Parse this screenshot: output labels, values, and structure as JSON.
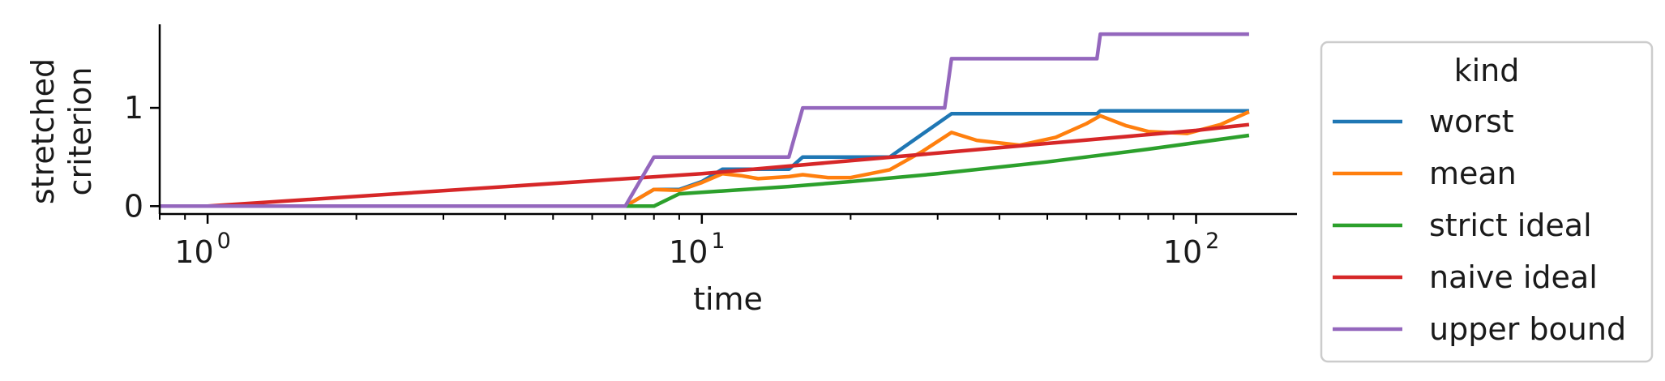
{
  "chart_data": {
    "type": "line",
    "title": "",
    "xlabel": "time",
    "ylabel": "stretched\ncriterion",
    "xscale": "log",
    "xlim": [
      0.8,
      160
    ],
    "ylim": [
      -0.08,
      1.85
    ],
    "x_ticks": [
      {
        "value": 1,
        "base": "10",
        "exp": "0"
      },
      {
        "value": 10,
        "base": "10",
        "exp": "1"
      },
      {
        "value": 100,
        "base": "10",
        "exp": "2"
      }
    ],
    "y_ticks": [
      {
        "value": 0,
        "label": "0"
      },
      {
        "value": 1,
        "label": "1"
      }
    ],
    "grid": false,
    "legend": {
      "title": "kind",
      "position": "outside-right"
    },
    "series": [
      {
        "name": "worst",
        "color": "#1f77b4",
        "x": [
          0.8,
          7,
          8,
          9,
          10,
          11,
          15,
          16,
          20,
          24,
          32,
          40,
          63,
          64,
          96,
          128
        ],
        "y": [
          0,
          0,
          0.17,
          0.17,
          0.25,
          0.375,
          0.375,
          0.5,
          0.5,
          0.5,
          0.94,
          0.94,
          0.94,
          0.97,
          0.97,
          0.97
        ]
      },
      {
        "name": "mean",
        "color": "#ff7f0e",
        "x": [
          0.8,
          7,
          8,
          9,
          10,
          11,
          12,
          13,
          15,
          16,
          18,
          20,
          24,
          28,
          32,
          36,
          44,
          52,
          60,
          64,
          72,
          80,
          96,
          112,
          128
        ],
        "y": [
          0,
          0,
          0.17,
          0.16,
          0.24,
          0.33,
          0.31,
          0.28,
          0.3,
          0.32,
          0.29,
          0.29,
          0.37,
          0.56,
          0.75,
          0.67,
          0.62,
          0.7,
          0.84,
          0.92,
          0.82,
          0.76,
          0.74,
          0.83,
          0.96
        ]
      },
      {
        "name": "strict ideal",
        "color": "#2ca02c",
        "x": [
          0.8,
          7,
          8,
          9,
          10,
          15,
          20,
          30,
          50,
          80,
          128
        ],
        "y": [
          0,
          0,
          0,
          0.125,
          0.14,
          0.2,
          0.25,
          0.33,
          0.45,
          0.58,
          0.72
        ]
      },
      {
        "name": "naive ideal",
        "color": "#d62728",
        "x": [
          0.8,
          1,
          10,
          100,
          128
        ],
        "y": [
          0,
          0,
          0.33,
          0.77,
          0.83
        ]
      },
      {
        "name": "upper bound",
        "color": "#9467bd",
        "x": [
          0.8,
          7,
          8,
          15,
          16,
          31,
          32,
          63,
          64,
          128
        ],
        "y": [
          0,
          0,
          0.5,
          0.5,
          1.0,
          1.0,
          1.5,
          1.5,
          1.75,
          1.75
        ]
      }
    ]
  }
}
